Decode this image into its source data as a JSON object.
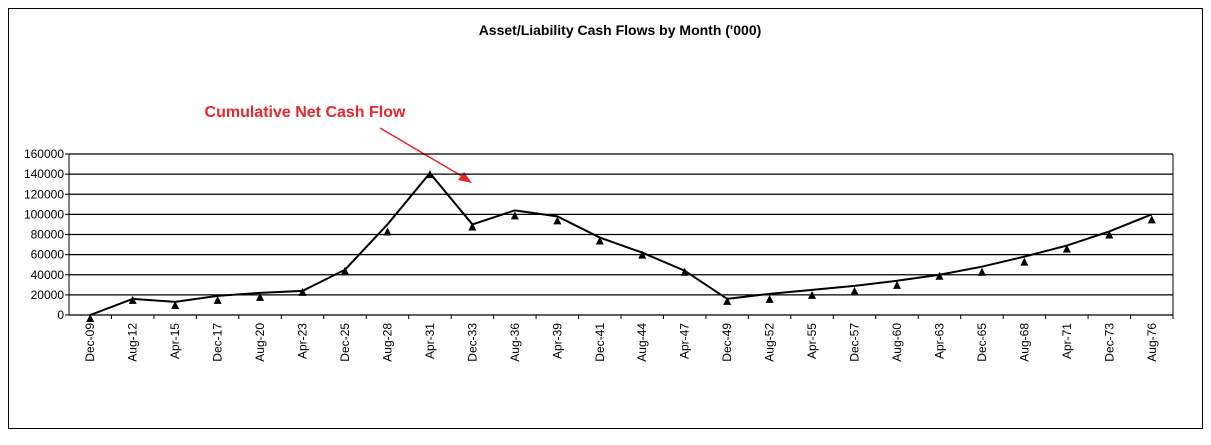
{
  "chart_data": {
    "type": "line",
    "title": "Asset/Liability Cash Flows by Month ('000)",
    "annotation": "Cumulative Net Cash Flow",
    "annotation_color": "#e8262b",
    "categories": [
      "Dec-09",
      "Aug-12",
      "Apr-15",
      "Dec-17",
      "Aug-20",
      "Apr-23",
      "Dec-25",
      "Aug-28",
      "Apr-31",
      "Dec-33",
      "Aug-36",
      "Apr-39",
      "Dec-41",
      "Aug-44",
      "Apr-47",
      "Dec-49",
      "Aug-52",
      "Apr-55",
      "Dec-57",
      "Aug-60",
      "Apr-63",
      "Dec-65",
      "Aug-68",
      "Apr-71",
      "Dec-73",
      "Aug-76"
    ],
    "series": [
      {
        "color": "#000000",
        "marker": "none",
        "values": [
          0,
          16000,
          13000,
          19000,
          22000,
          24000,
          45000,
          90000,
          141000,
          90000,
          104000,
          98000,
          77000,
          62000,
          44000,
          16000,
          21000,
          25000,
          29000,
          34000,
          40000,
          48000,
          58000,
          69000,
          83000,
          100000
        ]
      },
      {
        "color": "#000000",
        "marker": "triangle",
        "values": [
          -3000,
          15000,
          10000,
          15000,
          18000,
          23000,
          44000,
          83000,
          140000,
          88000,
          99000,
          94000,
          74000,
          60000,
          43000,
          14000,
          16000,
          20000,
          24000,
          30000,
          39000,
          43000,
          53000,
          66000,
          80000,
          95000
        ]
      }
    ],
    "ylim": [
      0,
      160000
    ],
    "yticks": [
      0,
      20000,
      40000,
      60000,
      80000,
      100000,
      120000,
      140000,
      160000
    ],
    "grid": true
  }
}
